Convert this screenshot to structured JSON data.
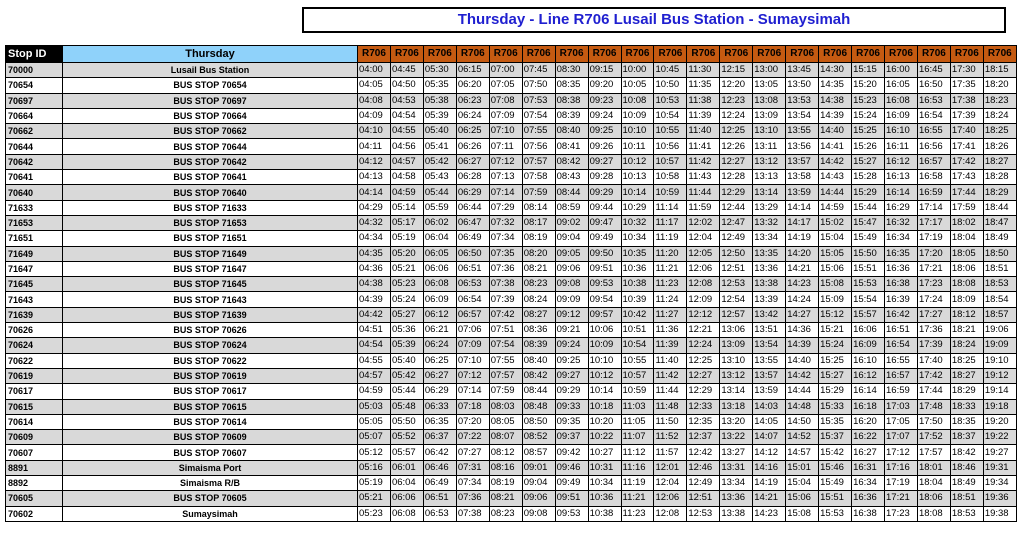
{
  "title": "Thursday - Line R706 Lusail Bus Station - Sumaysimah",
  "colors": {
    "stop_id_header": "#000000",
    "day_header": "#8fd2fa",
    "route_header": "#c55a11",
    "row_alt": "#d9d9d9",
    "title_text": "#1f1fd0"
  },
  "headers": {
    "stop_id": "Stop ID",
    "day": "Thursday",
    "trips": [
      "R706",
      "R706",
      "R706",
      "R706",
      "R706",
      "R706",
      "R706",
      "R706",
      "R706",
      "R706",
      "R706",
      "R706",
      "R706",
      "R706",
      "R706",
      "R706",
      "R706",
      "R706",
      "R706",
      "R706"
    ]
  },
  "rows": [
    {
      "id": "70000",
      "name": "Lusail Bus Station",
      "times": [
        "04:00",
        "04:45",
        "05:30",
        "06:15",
        "07:00",
        "07:45",
        "08:30",
        "09:15",
        "10:00",
        "10:45",
        "11:30",
        "12:15",
        "13:00",
        "13:45",
        "14:30",
        "15:15",
        "16:00",
        "16:45",
        "17:30",
        "18:15"
      ]
    },
    {
      "id": "70654",
      "name": "BUS STOP 70654",
      "times": [
        "04:05",
        "04:50",
        "05:35",
        "06:20",
        "07:05",
        "07:50",
        "08:35",
        "09:20",
        "10:05",
        "10:50",
        "11:35",
        "12:20",
        "13:05",
        "13:50",
        "14:35",
        "15:20",
        "16:05",
        "16:50",
        "17:35",
        "18:20"
      ]
    },
    {
      "id": "70697",
      "name": "BUS STOP 70697",
      "times": [
        "04:08",
        "04:53",
        "05:38",
        "06:23",
        "07:08",
        "07:53",
        "08:38",
        "09:23",
        "10:08",
        "10:53",
        "11:38",
        "12:23",
        "13:08",
        "13:53",
        "14:38",
        "15:23",
        "16:08",
        "16:53",
        "17:38",
        "18:23"
      ]
    },
    {
      "id": "70664",
      "name": "BUS STOP 70664",
      "times": [
        "04:09",
        "04:54",
        "05:39",
        "06:24",
        "07:09",
        "07:54",
        "08:39",
        "09:24",
        "10:09",
        "10:54",
        "11:39",
        "12:24",
        "13:09",
        "13:54",
        "14:39",
        "15:24",
        "16:09",
        "16:54",
        "17:39",
        "18:24"
      ]
    },
    {
      "id": "70662",
      "name": "BUS STOP 70662",
      "times": [
        "04:10",
        "04:55",
        "05:40",
        "06:25",
        "07:10",
        "07:55",
        "08:40",
        "09:25",
        "10:10",
        "10:55",
        "11:40",
        "12:25",
        "13:10",
        "13:55",
        "14:40",
        "15:25",
        "16:10",
        "16:55",
        "17:40",
        "18:25"
      ]
    },
    {
      "id": "70644",
      "name": "BUS STOP 70644",
      "times": [
        "04:11",
        "04:56",
        "05:41",
        "06:26",
        "07:11",
        "07:56",
        "08:41",
        "09:26",
        "10:11",
        "10:56",
        "11:41",
        "12:26",
        "13:11",
        "13:56",
        "14:41",
        "15:26",
        "16:11",
        "16:56",
        "17:41",
        "18:26"
      ]
    },
    {
      "id": "70642",
      "name": "BUS STOP 70642",
      "times": [
        "04:12",
        "04:57",
        "05:42",
        "06:27",
        "07:12",
        "07:57",
        "08:42",
        "09:27",
        "10:12",
        "10:57",
        "11:42",
        "12:27",
        "13:12",
        "13:57",
        "14:42",
        "15:27",
        "16:12",
        "16:57",
        "17:42",
        "18:27"
      ]
    },
    {
      "id": "70641",
      "name": "BUS STOP 70641",
      "times": [
        "04:13",
        "04:58",
        "05:43",
        "06:28",
        "07:13",
        "07:58",
        "08:43",
        "09:28",
        "10:13",
        "10:58",
        "11:43",
        "12:28",
        "13:13",
        "13:58",
        "14:43",
        "15:28",
        "16:13",
        "16:58",
        "17:43",
        "18:28"
      ]
    },
    {
      "id": "70640",
      "name": "BUS STOP 70640",
      "times": [
        "04:14",
        "04:59",
        "05:44",
        "06:29",
        "07:14",
        "07:59",
        "08:44",
        "09:29",
        "10:14",
        "10:59",
        "11:44",
        "12:29",
        "13:14",
        "13:59",
        "14:44",
        "15:29",
        "16:14",
        "16:59",
        "17:44",
        "18:29"
      ]
    },
    {
      "id": "71633",
      "name": "BUS STOP 71633",
      "times": [
        "04:29",
        "05:14",
        "05:59",
        "06:44",
        "07:29",
        "08:14",
        "08:59",
        "09:44",
        "10:29",
        "11:14",
        "11:59",
        "12:44",
        "13:29",
        "14:14",
        "14:59",
        "15:44",
        "16:29",
        "17:14",
        "17:59",
        "18:44"
      ]
    },
    {
      "id": "71653",
      "name": "BUS STOP 71653",
      "times": [
        "04:32",
        "05:17",
        "06:02",
        "06:47",
        "07:32",
        "08:17",
        "09:02",
        "09:47",
        "10:32",
        "11:17",
        "12:02",
        "12:47",
        "13:32",
        "14:17",
        "15:02",
        "15:47",
        "16:32",
        "17:17",
        "18:02",
        "18:47"
      ]
    },
    {
      "id": "71651",
      "name": "BUS STOP 71651",
      "times": [
        "04:34",
        "05:19",
        "06:04",
        "06:49",
        "07:34",
        "08:19",
        "09:04",
        "09:49",
        "10:34",
        "11:19",
        "12:04",
        "12:49",
        "13:34",
        "14:19",
        "15:04",
        "15:49",
        "16:34",
        "17:19",
        "18:04",
        "18:49"
      ]
    },
    {
      "id": "71649",
      "name": "BUS STOP 71649",
      "times": [
        "04:35",
        "05:20",
        "06:05",
        "06:50",
        "07:35",
        "08:20",
        "09:05",
        "09:50",
        "10:35",
        "11:20",
        "12:05",
        "12:50",
        "13:35",
        "14:20",
        "15:05",
        "15:50",
        "16:35",
        "17:20",
        "18:05",
        "18:50"
      ]
    },
    {
      "id": "71647",
      "name": "BUS STOP 71647",
      "times": [
        "04:36",
        "05:21",
        "06:06",
        "06:51",
        "07:36",
        "08:21",
        "09:06",
        "09:51",
        "10:36",
        "11:21",
        "12:06",
        "12:51",
        "13:36",
        "14:21",
        "15:06",
        "15:51",
        "16:36",
        "17:21",
        "18:06",
        "18:51"
      ]
    },
    {
      "id": "71645",
      "name": "BUS STOP 71645",
      "times": [
        "04:38",
        "05:23",
        "06:08",
        "06:53",
        "07:38",
        "08:23",
        "09:08",
        "09:53",
        "10:38",
        "11:23",
        "12:08",
        "12:53",
        "13:38",
        "14:23",
        "15:08",
        "15:53",
        "16:38",
        "17:23",
        "18:08",
        "18:53"
      ]
    },
    {
      "id": "71643",
      "name": "BUS STOP 71643",
      "times": [
        "04:39",
        "05:24",
        "06:09",
        "06:54",
        "07:39",
        "08:24",
        "09:09",
        "09:54",
        "10:39",
        "11:24",
        "12:09",
        "12:54",
        "13:39",
        "14:24",
        "15:09",
        "15:54",
        "16:39",
        "17:24",
        "18:09",
        "18:54"
      ]
    },
    {
      "id": "71639",
      "name": "BUS STOP 71639",
      "times": [
        "04:42",
        "05:27",
        "06:12",
        "06:57",
        "07:42",
        "08:27",
        "09:12",
        "09:57",
        "10:42",
        "11:27",
        "12:12",
        "12:57",
        "13:42",
        "14:27",
        "15:12",
        "15:57",
        "16:42",
        "17:27",
        "18:12",
        "18:57"
      ]
    },
    {
      "id": "70626",
      "name": "BUS STOP 70626",
      "times": [
        "04:51",
        "05:36",
        "06:21",
        "07:06",
        "07:51",
        "08:36",
        "09:21",
        "10:06",
        "10:51",
        "11:36",
        "12:21",
        "13:06",
        "13:51",
        "14:36",
        "15:21",
        "16:06",
        "16:51",
        "17:36",
        "18:21",
        "19:06"
      ]
    },
    {
      "id": "70624",
      "name": "BUS STOP 70624",
      "times": [
        "04:54",
        "05:39",
        "06:24",
        "07:09",
        "07:54",
        "08:39",
        "09:24",
        "10:09",
        "10:54",
        "11:39",
        "12:24",
        "13:09",
        "13:54",
        "14:39",
        "15:24",
        "16:09",
        "16:54",
        "17:39",
        "18:24",
        "19:09"
      ]
    },
    {
      "id": "70622",
      "name": "BUS STOP 70622",
      "times": [
        "04:55",
        "05:40",
        "06:25",
        "07:10",
        "07:55",
        "08:40",
        "09:25",
        "10:10",
        "10:55",
        "11:40",
        "12:25",
        "13:10",
        "13:55",
        "14:40",
        "15:25",
        "16:10",
        "16:55",
        "17:40",
        "18:25",
        "19:10"
      ]
    },
    {
      "id": "70619",
      "name": "BUS STOP 70619",
      "times": [
        "04:57",
        "05:42",
        "06:27",
        "07:12",
        "07:57",
        "08:42",
        "09:27",
        "10:12",
        "10:57",
        "11:42",
        "12:27",
        "13:12",
        "13:57",
        "14:42",
        "15:27",
        "16:12",
        "16:57",
        "17:42",
        "18:27",
        "19:12"
      ]
    },
    {
      "id": "70617",
      "name": "BUS STOP 70617",
      "times": [
        "04:59",
        "05:44",
        "06:29",
        "07:14",
        "07:59",
        "08:44",
        "09:29",
        "10:14",
        "10:59",
        "11:44",
        "12:29",
        "13:14",
        "13:59",
        "14:44",
        "15:29",
        "16:14",
        "16:59",
        "17:44",
        "18:29",
        "19:14"
      ]
    },
    {
      "id": "70615",
      "name": "BUS STOP 70615",
      "times": [
        "05:03",
        "05:48",
        "06:33",
        "07:18",
        "08:03",
        "08:48",
        "09:33",
        "10:18",
        "11:03",
        "11:48",
        "12:33",
        "13:18",
        "14:03",
        "14:48",
        "15:33",
        "16:18",
        "17:03",
        "17:48",
        "18:33",
        "19:18"
      ]
    },
    {
      "id": "70614",
      "name": "BUS STOP 70614",
      "times": [
        "05:05",
        "05:50",
        "06:35",
        "07:20",
        "08:05",
        "08:50",
        "09:35",
        "10:20",
        "11:05",
        "11:50",
        "12:35",
        "13:20",
        "14:05",
        "14:50",
        "15:35",
        "16:20",
        "17:05",
        "17:50",
        "18:35",
        "19:20"
      ]
    },
    {
      "id": "70609",
      "name": "BUS STOP 70609",
      "times": [
        "05:07",
        "05:52",
        "06:37",
        "07:22",
        "08:07",
        "08:52",
        "09:37",
        "10:22",
        "11:07",
        "11:52",
        "12:37",
        "13:22",
        "14:07",
        "14:52",
        "15:37",
        "16:22",
        "17:07",
        "17:52",
        "18:37",
        "19:22"
      ]
    },
    {
      "id": "70607",
      "name": "BUS STOP 70607",
      "times": [
        "05:12",
        "05:57",
        "06:42",
        "07:27",
        "08:12",
        "08:57",
        "09:42",
        "10:27",
        "11:12",
        "11:57",
        "12:42",
        "13:27",
        "14:12",
        "14:57",
        "15:42",
        "16:27",
        "17:12",
        "17:57",
        "18:42",
        "19:27"
      ]
    },
    {
      "id": "8891",
      "name": "Simaisma Port",
      "times": [
        "05:16",
        "06:01",
        "06:46",
        "07:31",
        "08:16",
        "09:01",
        "09:46",
        "10:31",
        "11:16",
        "12:01",
        "12:46",
        "13:31",
        "14:16",
        "15:01",
        "15:46",
        "16:31",
        "17:16",
        "18:01",
        "18:46",
        "19:31"
      ]
    },
    {
      "id": "8892",
      "name": "Simaisma R/B",
      "times": [
        "05:19",
        "06:04",
        "06:49",
        "07:34",
        "08:19",
        "09:04",
        "09:49",
        "10:34",
        "11:19",
        "12:04",
        "12:49",
        "13:34",
        "14:19",
        "15:04",
        "15:49",
        "16:34",
        "17:19",
        "18:04",
        "18:49",
        "19:34"
      ]
    },
    {
      "id": "70605",
      "name": "BUS STOP 70605",
      "times": [
        "05:21",
        "06:06",
        "06:51",
        "07:36",
        "08:21",
        "09:06",
        "09:51",
        "10:36",
        "11:21",
        "12:06",
        "12:51",
        "13:36",
        "14:21",
        "15:06",
        "15:51",
        "16:36",
        "17:21",
        "18:06",
        "18:51",
        "19:36"
      ]
    },
    {
      "id": "70602",
      "name": "Sumaysimah",
      "times": [
        "05:23",
        "06:08",
        "06:53",
        "07:38",
        "08:23",
        "09:08",
        "09:53",
        "10:38",
        "11:23",
        "12:08",
        "12:53",
        "13:38",
        "14:23",
        "15:08",
        "15:53",
        "16:38",
        "17:23",
        "18:08",
        "18:53",
        "19:38"
      ]
    }
  ]
}
